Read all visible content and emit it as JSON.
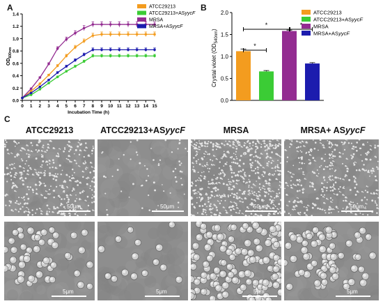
{
  "panels": {
    "a": "A",
    "b": "B",
    "c": "C"
  },
  "chart_data": [
    {
      "type": "line",
      "panel": "A",
      "title": "",
      "xlabel": "Incubation Time (h)",
      "ylabel_main": "OD",
      "ylabel_sub": "600nm",
      "xlim": [
        0,
        15
      ],
      "ylim": [
        0,
        1.4
      ],
      "x_ticks": [
        "0",
        "1",
        "2",
        "3",
        "4",
        "5",
        "6",
        "7",
        "8",
        "9",
        "10",
        "11",
        "12",
        "13",
        "14",
        "15"
      ],
      "y_ticks": [
        "0.0",
        "0.2",
        "0.4",
        "0.6",
        "0.8",
        "1.0",
        "1.2",
        "1.4"
      ],
      "x": [
        0,
        1,
        2,
        3,
        4,
        5,
        6,
        7,
        8,
        9,
        10,
        11,
        12,
        13,
        14,
        15
      ],
      "legend_position": "top-right",
      "series": [
        {
          "name": "ATCC29213",
          "color": "#f39c1f",
          "values": [
            0.04,
            0.15,
            0.27,
            0.41,
            0.56,
            0.72,
            0.86,
            0.96,
            1.05,
            1.07,
            1.07,
            1.07,
            1.07,
            1.07,
            1.07,
            1.07
          ]
        },
        {
          "name": "ATCC29213+AS",
          "name_italic": "yycF",
          "color": "#3bcc35",
          "values": [
            0.04,
            0.09,
            0.18,
            0.28,
            0.38,
            0.47,
            0.55,
            0.63,
            0.72,
            0.72,
            0.72,
            0.72,
            0.72,
            0.72,
            0.72,
            0.72
          ]
        },
        {
          "name": "MRSA",
          "color": "#932c91",
          "values": [
            0.04,
            0.19,
            0.37,
            0.59,
            0.84,
            0.99,
            1.09,
            1.17,
            1.23,
            1.23,
            1.23,
            1.23,
            1.23,
            1.23,
            1.23,
            1.23
          ]
        },
        {
          "name": "MRSA+AS",
          "name_italic": "yycF",
          "color": "#1c1cae",
          "values": [
            0.04,
            0.12,
            0.22,
            0.33,
            0.45,
            0.55,
            0.65,
            0.74,
            0.82,
            0.82,
            0.82,
            0.82,
            0.82,
            0.82,
            0.82,
            0.82
          ]
        }
      ]
    },
    {
      "type": "bar",
      "panel": "B",
      "title": "",
      "ylabel_main": "Crystal violet (OD",
      "ylabel_sub": "540nm",
      "ylabel_end": ")",
      "ylim": [
        0,
        2.0
      ],
      "y_ticks": [
        "0.0",
        "0.5",
        "1.0",
        "1.5",
        "2.0"
      ],
      "categories": [
        "ATCC29213",
        "ATCC29213+ASyycF",
        "MRSA",
        "MRSA+ASyycF"
      ],
      "values": [
        1.12,
        0.66,
        1.58,
        0.84
      ],
      "errors": [
        0.05,
        0.02,
        0.02,
        0.02
      ],
      "colors": [
        "#f39c1f",
        "#3bcc35",
        "#932c91",
        "#1c1cae"
      ],
      "significance": [
        {
          "from": 0,
          "to": 1,
          "label": "*"
        },
        {
          "from": 0,
          "to": 2,
          "label": "*"
        },
        {
          "from": 2,
          "to": 3,
          "label": "*"
        }
      ],
      "legend_position": "right",
      "legend": [
        {
          "name": "ATCC29213",
          "color": "#f39c1f"
        },
        {
          "name": "ATCC29213+AS",
          "name_italic": "yycF",
          "color": "#3bcc35"
        },
        {
          "name": "MRSA",
          "color": "#932c91"
        },
        {
          "name": "MRSA+AS",
          "name_italic": "yycF",
          "color": "#1c1cae"
        }
      ]
    }
  ],
  "sem": {
    "columns": [
      {
        "label": "ATCC29213",
        "label_italic": ""
      },
      {
        "label": "ATCC29213+AS",
        "label_italic": "yycF"
      },
      {
        "label": "MRSA",
        "label_italic": ""
      },
      {
        "label": "MRSA+ AS",
        "label_italic": "yycF"
      }
    ],
    "scale_top": "50μm",
    "scale_bottom": "5μm"
  }
}
